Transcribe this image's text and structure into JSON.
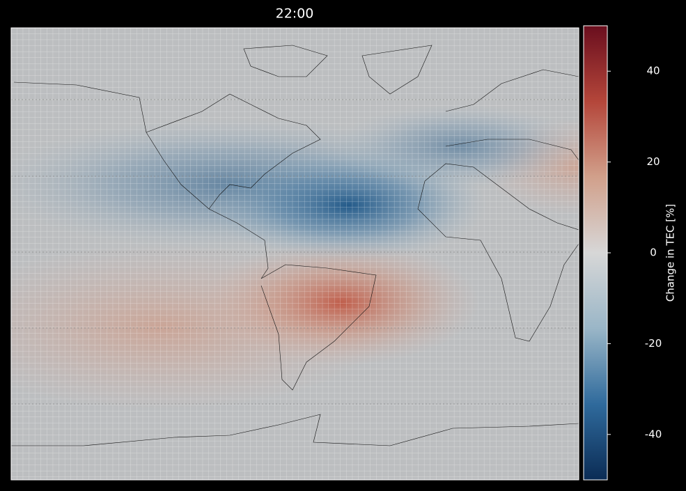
{
  "title": "22:00",
  "colorbar": {
    "label": "Change in TEC [%]",
    "lim": [
      -50,
      50
    ],
    "ticks": [
      -40,
      -20,
      0,
      20,
      40
    ],
    "colors": [
      "#0b2c55",
      "#2f6a9c",
      "#9ab6c7",
      "#d7d7d7",
      "#d1a08b",
      "#b4463a",
      "#6a0e1e"
    ]
  }
}
